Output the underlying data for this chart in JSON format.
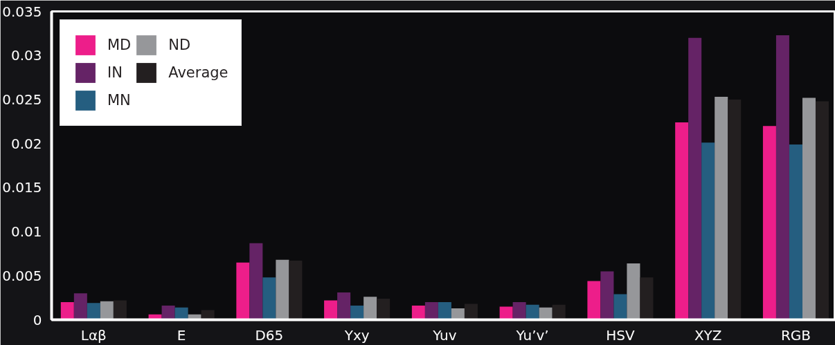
{
  "chart_data": {
    "type": "bar",
    "categories": [
      "Lαβ",
      "E",
      "D65",
      "Yxy",
      "Yuv",
      "Yu’v’",
      "HSV",
      "XYZ",
      "RGB"
    ],
    "series": [
      {
        "name": "MD",
        "color": "#ed1e8a",
        "values": [
          0.002,
          0.0006,
          0.0065,
          0.0022,
          0.0016,
          0.0015,
          0.0044,
          0.0224,
          0.022
        ]
      },
      {
        "name": "IN",
        "color": "#652366",
        "values": [
          0.003,
          0.0016,
          0.0087,
          0.0031,
          0.002,
          0.002,
          0.0055,
          0.032,
          0.0323
        ]
      },
      {
        "name": "MN",
        "color": "#255e80",
        "values": [
          0.0019,
          0.0014,
          0.0048,
          0.0016,
          0.002,
          0.0017,
          0.0029,
          0.0201,
          0.0199
        ]
      },
      {
        "name": "ND",
        "color": "#96979a",
        "values": [
          0.0021,
          0.0006,
          0.0068,
          0.0026,
          0.0013,
          0.0014,
          0.0064,
          0.0253,
          0.0252
        ]
      },
      {
        "name": "Average",
        "color": "#231f20",
        "values": [
          0.0022,
          0.0011,
          0.0067,
          0.0024,
          0.0018,
          0.0017,
          0.0048,
          0.025,
          0.0248
        ]
      }
    ],
    "ylim": [
      0,
      0.035
    ],
    "yticks": [
      0,
      0.005,
      0.01,
      0.015,
      0.02,
      0.025,
      0.03,
      0.035
    ],
    "grid": false,
    "legend": "top left"
  }
}
